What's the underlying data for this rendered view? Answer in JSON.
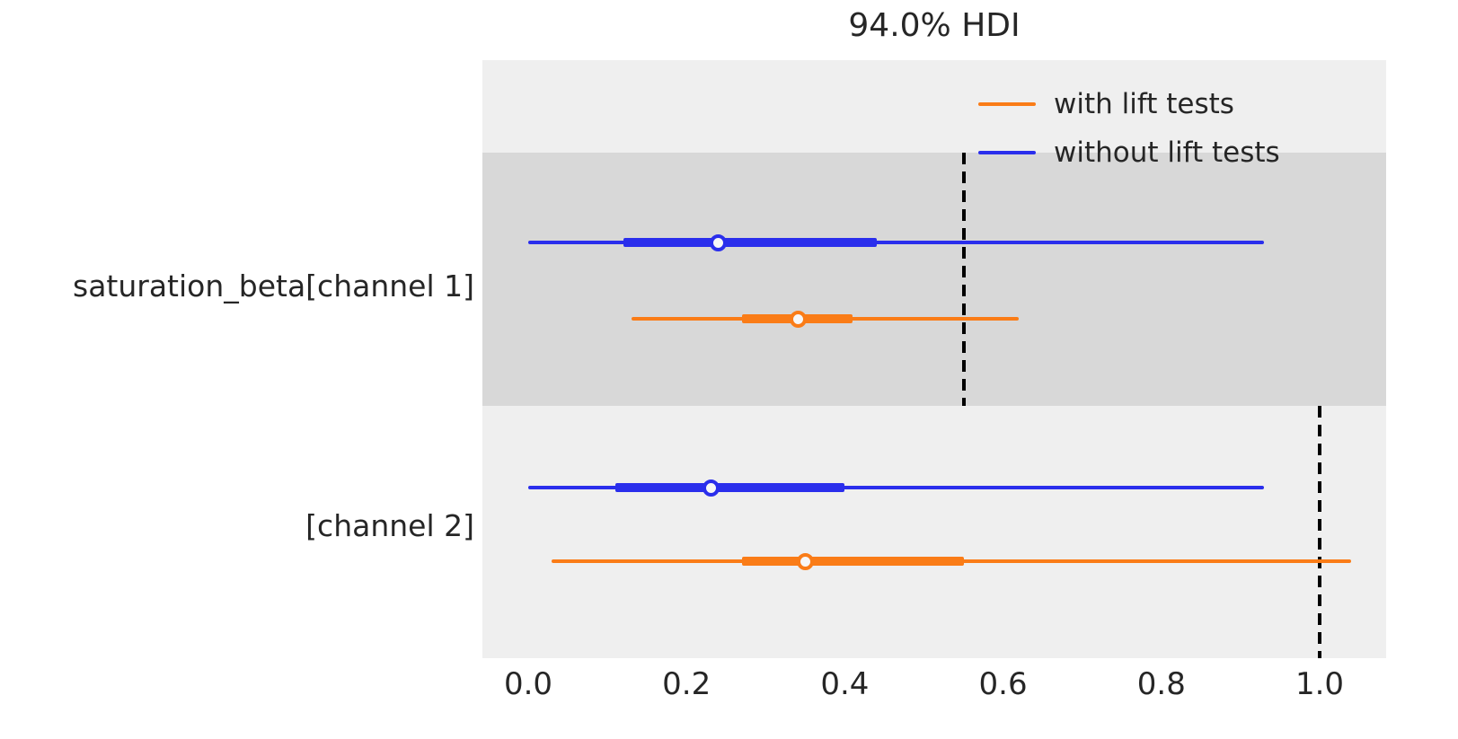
{
  "title": "94.0% HDI",
  "legend": {
    "items": [
      {
        "label": "with lift tests",
        "color": "#fa7c17"
      },
      {
        "label": "without lift tests",
        "color": "#2a2eec"
      }
    ]
  },
  "colors": {
    "orange": "#fa7c17",
    "blue": "#2a2eec",
    "plot_bg": "#efefef",
    "band_bg": "#d8d8d8",
    "text": "#262626",
    "reference_line": "#000000"
  },
  "chart_data": {
    "type": "forest_hdi",
    "title": "94.0% HDI",
    "hdi_prob": 0.94,
    "xlabel": "",
    "x_ticks": [
      0.0,
      0.2,
      0.4,
      0.6,
      0.8,
      1.0
    ],
    "x_range": [
      -0.058,
      1.084
    ],
    "legend_position": "upper right",
    "grid": false,
    "rows": [
      {
        "label": "saturation_beta[channel 1]",
        "shaded": true,
        "reference_x": 0.55,
        "series": [
          {
            "name": "without lift tests",
            "color": "#2a2eec",
            "hdi": [
              0.0,
              0.93
            ],
            "quartile": [
              0.12,
              0.44
            ],
            "median": 0.24
          },
          {
            "name": "with lift tests",
            "color": "#fa7c17",
            "hdi": [
              0.13,
              0.62
            ],
            "quartile": [
              0.27,
              0.41
            ],
            "median": 0.34
          }
        ]
      },
      {
        "label": "[channel 2]",
        "shaded": false,
        "reference_x": 1.0,
        "series": [
          {
            "name": "without lift tests",
            "color": "#2a2eec",
            "hdi": [
              0.0,
              0.93
            ],
            "quartile": [
              0.11,
              0.4
            ],
            "median": 0.23
          },
          {
            "name": "with lift tests",
            "color": "#fa7c17",
            "hdi": [
              0.03,
              1.04
            ],
            "quartile": [
              0.27,
              0.55
            ],
            "median": 0.35
          }
        ]
      }
    ]
  }
}
